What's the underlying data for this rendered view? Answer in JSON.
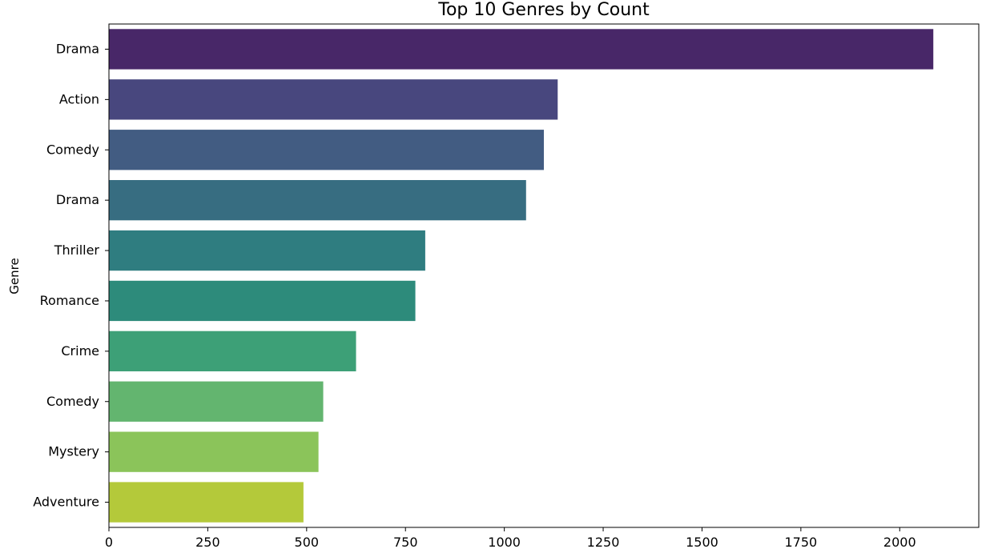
{
  "chart_data": {
    "type": "bar",
    "orientation": "horizontal",
    "title": "Top 10 Genres by Count",
    "xlabel": "",
    "ylabel": "Genre",
    "categories": [
      "Drama",
      "Action",
      "Comedy",
      "Drama",
      "Thriller",
      "Romance",
      "Crime",
      "Comedy",
      "Mystery",
      "Adventure"
    ],
    "values": [
      2085,
      1135,
      1100,
      1055,
      800,
      775,
      625,
      542,
      530,
      492
    ],
    "xlim": [
      0,
      2200
    ],
    "xticks": [
      0,
      250,
      500,
      750,
      1000,
      1250,
      1500,
      1750,
      2000
    ],
    "colors": [
      "#482768",
      "#48477e",
      "#425c82",
      "#376d81",
      "#2f7d80",
      "#2d8b7b",
      "#3da077",
      "#63b56f",
      "#8bc45a",
      "#b4c93a"
    ],
    "grid": false,
    "legend": "none"
  }
}
